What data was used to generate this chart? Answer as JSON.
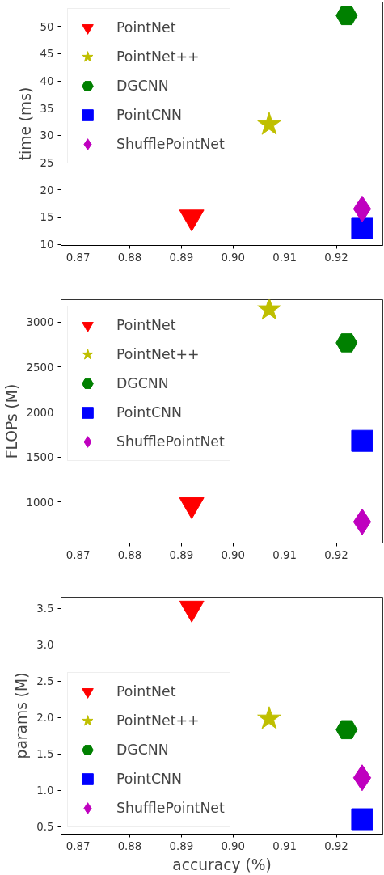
{
  "chart_data": [
    {
      "type": "scatter",
      "ylabel": "time (ms)",
      "xlim": [
        0.8667,
        0.929
      ],
      "xticks": [
        {
          "value": 0.87,
          "label": "0.87"
        },
        {
          "value": 0.88,
          "label": "0.88"
        },
        {
          "value": 0.89,
          "label": "0.89"
        },
        {
          "value": 0.9,
          "label": "0.90"
        },
        {
          "value": 0.91,
          "label": "0.91"
        },
        {
          "value": 0.92,
          "label": "0.92"
        }
      ],
      "ylim": [
        9.8,
        54.5
      ],
      "yticks": [
        10,
        15,
        20,
        25,
        30,
        35,
        40,
        45,
        50
      ],
      "grid": false,
      "legend": "top left",
      "series": [
        {
          "name": "PointNet",
          "color": "#ff0000",
          "marker": "triangle_down",
          "x": [
            0.892
          ],
          "values": [
            15
          ]
        },
        {
          "name": "PointNet++",
          "color": "#bfbf00",
          "marker": "star",
          "x": [
            0.907
          ],
          "values": [
            32
          ]
        },
        {
          "name": "DGCNN",
          "color": "#008000",
          "x": [
            0.922
          ],
          "values": [
            52
          ]
        },
        {
          "name": "PointCNN",
          "color": "#0000ff",
          "marker": "square",
          "x": [
            0.925
          ],
          "values": [
            13
          ]
        },
        {
          "name": "ShufflePointNet",
          "color": "#bf00bf",
          "marker": "diamond",
          "x": [
            0.925
          ],
          "values": [
            16.5
          ]
        }
      ]
    },
    {
      "type": "scatter",
      "ylabel": "FLOPs (M)",
      "xlim": [
        0.8667,
        0.929
      ],
      "xticks": [
        {
          "value": 0.87,
          "label": "0.87"
        },
        {
          "value": 0.88,
          "label": "0.88"
        },
        {
          "value": 0.89,
          "label": "0.89"
        },
        {
          "value": 0.9,
          "label": "0.90"
        },
        {
          "value": 0.91,
          "label": "0.91"
        },
        {
          "value": 0.92,
          "label": "0.92"
        }
      ],
      "ylim": [
        545,
        3250
      ],
      "yticks": [
        1000,
        1500,
        2000,
        2500,
        3000
      ],
      "grid": false,
      "legend": "top left",
      "series": [
        {
          "name": "PointNet",
          "color": "#ff0000",
          "marker": "triangle_down",
          "x": [
            0.892
          ],
          "values": [
            970
          ]
        },
        {
          "name": "PointNet++",
          "color": "#bfbf00",
          "marker": "star",
          "x": [
            0.907
          ],
          "values": [
            3140
          ]
        },
        {
          "name": "DGCNN",
          "color": "#008000",
          "x": [
            0.922
          ],
          "values": [
            2770
          ]
        },
        {
          "name": "PointCNN",
          "color": "#0000ff",
          "marker": "square",
          "x": [
            0.925
          ],
          "values": [
            1680
          ]
        },
        {
          "name": "ShufflePointNet",
          "color": "#bf00bf",
          "marker": "diamond",
          "x": [
            0.925
          ],
          "values": [
            780
          ]
        }
      ]
    },
    {
      "type": "scatter",
      "xlabel": "accuracy (%)",
      "ylabel": "params (M)",
      "xlim": [
        0.8667,
        0.929
      ],
      "xticks": [
        {
          "value": 0.87,
          "label": "0.87"
        },
        {
          "value": 0.88,
          "label": "0.88"
        },
        {
          "value": 0.89,
          "label": "0.89"
        },
        {
          "value": 0.9,
          "label": "0.90"
        },
        {
          "value": 0.91,
          "label": "0.91"
        },
        {
          "value": 0.92,
          "label": "0.92"
        }
      ],
      "ylim": [
        0.395,
        3.65
      ],
      "yticks": [
        {
          "value": 0.5,
          "label": "0.5"
        },
        {
          "value": 1,
          "label": "1.0"
        },
        {
          "value": 1.5,
          "label": "1.5"
        },
        {
          "value": 2,
          "label": "2.0"
        },
        {
          "value": 2.5,
          "label": "2.5"
        },
        {
          "value": 3,
          "label": "3.0"
        },
        {
          "value": 3.5,
          "label": "3.5"
        }
      ],
      "grid": false,
      "legend": "bottom left",
      "series": [
        {
          "name": "PointNet",
          "color": "#ff0000",
          "marker": "triangle_down",
          "x": [
            0.892
          ],
          "values": [
            3.5
          ]
        },
        {
          "name": "PointNet++",
          "color": "#bfbf00",
          "marker": "star",
          "x": [
            0.907
          ],
          "values": [
            1.98
          ]
        },
        {
          "name": "DGCNN",
          "color": "#008000",
          "x": [
            0.922
          ],
          "values": [
            1.83
          ]
        },
        {
          "name": "PointCNN",
          "color": "#0000ff",
          "marker": "square",
          "x": [
            0.925
          ],
          "values": [
            0.6
          ]
        },
        {
          "name": "ShufflePointNet",
          "color": "#bf00bf",
          "marker": "diamond",
          "x": [
            0.925
          ],
          "values": [
            1.17
          ]
        }
      ]
    }
  ]
}
